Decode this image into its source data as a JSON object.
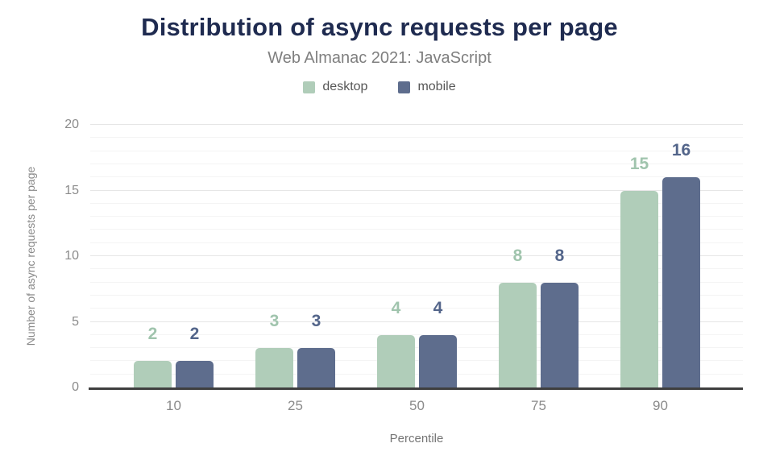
{
  "colors": {
    "title": "#1f2b50",
    "subtitle": "#7f7f7f",
    "axis_line": "#3f3f3f",
    "tick_label": "#8b8b8b",
    "grid_minor": "#f4f4f4",
    "grid_major": "#e6e6e6",
    "desktop": "#b0cdb9",
    "mobile": "#5e6d8d",
    "desktop_value_label": "#a0c4ad",
    "mobile_value_label": "#53658a"
  },
  "chart_data": {
    "type": "bar",
    "title": "Distribution of async requests per page",
    "subtitle": "Web Almanac 2021: JavaScript",
    "categories": [
      "10",
      "25",
      "50",
      "75",
      "90"
    ],
    "series": [
      {
        "name": "desktop",
        "values": [
          2,
          3,
          4,
          8,
          15
        ],
        "color": "#b0cdb9",
        "label_color": "#a0c4ad"
      },
      {
        "name": "mobile",
        "values": [
          2,
          3,
          4,
          8,
          16
        ],
        "color": "#5e6d8d",
        "label_color": "#53658a"
      }
    ],
    "xlabel": "Percentile",
    "ylabel": "Number of async requests per page",
    "ylim": [
      0,
      20
    ],
    "yticks": [
      0,
      5,
      10,
      15,
      20
    ],
    "grid": {
      "minor_step": 1,
      "major_step": 5
    },
    "legend_position": "top",
    "value_labels": true
  }
}
